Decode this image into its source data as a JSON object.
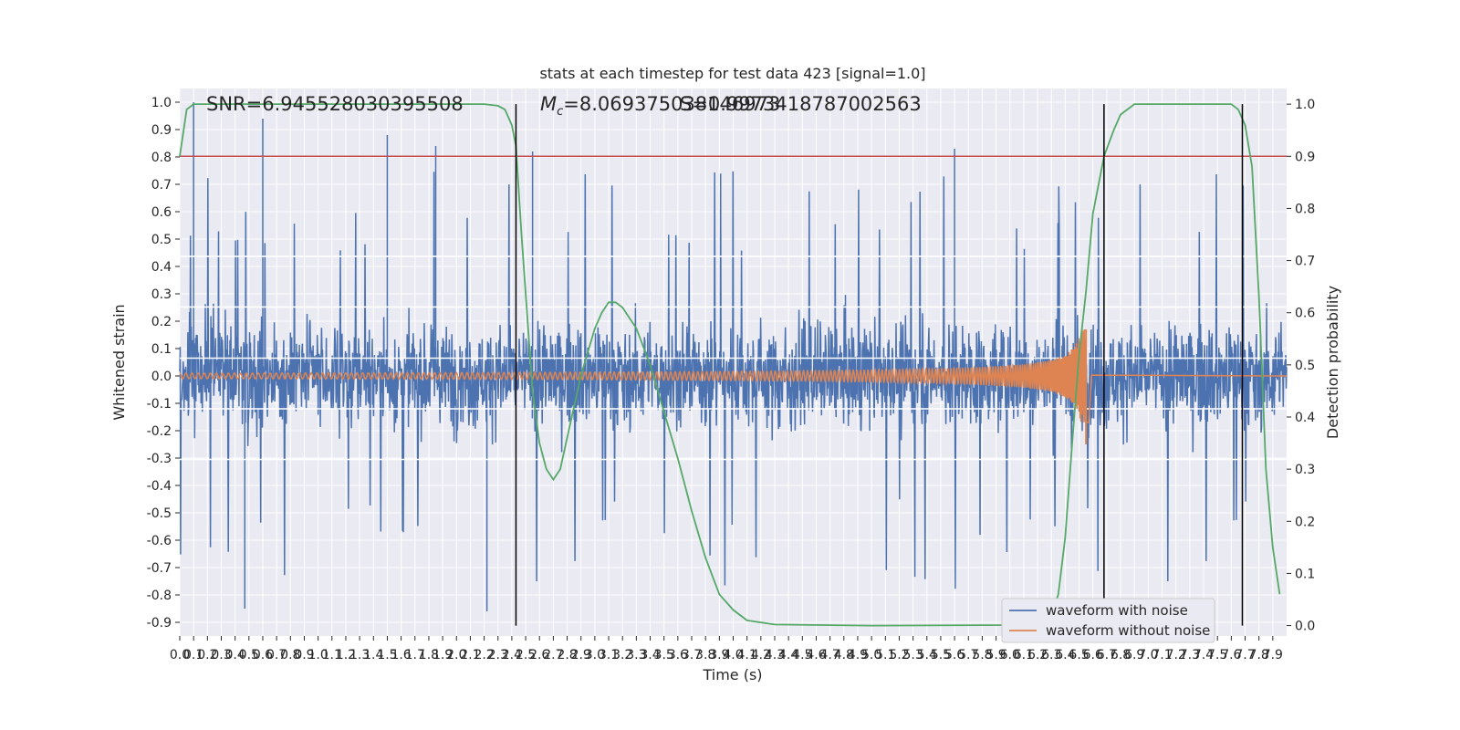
{
  "chart_data": {
    "type": "line",
    "title": "stats at each timestep for test data 423 [signal=1.0]",
    "xlabel": "Time (s)",
    "ylabel": "Whitened strain",
    "y2label": "Detection probability",
    "xlim": [
      0,
      8
    ],
    "ylim": [
      -0.95,
      1.05
    ],
    "y2lim": [
      -0.02,
      1.03
    ],
    "xticks": [
      "0.0",
      "0.1",
      "0.2",
      "0.3",
      "0.4",
      "0.5",
      "0.6",
      "0.7",
      "0.8",
      "0.9",
      "1.0",
      "1.1",
      "1.2",
      "1.3",
      "1.4",
      "1.5",
      "1.6",
      "1.7",
      "1.8",
      "1.9",
      "2.0",
      "2.1",
      "2.2",
      "2.3",
      "2.4",
      "2.5",
      "2.6",
      "2.7",
      "2.8",
      "2.9",
      "3.0",
      "3.1",
      "3.2",
      "3.3",
      "3.4",
      "3.5",
      "3.6",
      "3.7",
      "3.8",
      "3.9",
      "4.0",
      "4.1",
      "4.2",
      "4.3",
      "4.4",
      "4.5",
      "4.6",
      "4.7",
      "4.8",
      "4.9",
      "5.0",
      "5.1",
      "5.2",
      "5.3",
      "5.4",
      "5.5",
      "5.6",
      "5.7",
      "5.8",
      "5.9",
      "6.0",
      "6.1",
      "6.2",
      "6.3",
      "6.4",
      "6.5",
      "6.6",
      "6.7",
      "6.8",
      "6.9",
      "7.0",
      "7.1",
      "7.2",
      "7.3",
      "7.4",
      "7.5",
      "7.6",
      "7.7",
      "7.8",
      "7.9"
    ],
    "yticks": [
      "1.0",
      "0.9",
      "0.8",
      "0.7",
      "0.6",
      "0.5",
      "0.4",
      "0.3",
      "0.2",
      "0.1",
      "0.0",
      "-0.1",
      "-0.2",
      "-0.3",
      "-0.4",
      "-0.5",
      "-0.6",
      "-0.7",
      "-0.8",
      "-0.9"
    ],
    "y2ticks": [
      "1.0",
      "0.9",
      "0.8",
      "0.7",
      "0.6",
      "0.5",
      "0.4",
      "0.3",
      "0.2",
      "0.1",
      "0.0"
    ],
    "annotations": {
      "snr": "SNR=6.945528030395508",
      "mc": "=8.069375038146973",
      "mc_symbol": "M",
      "mc_sub": "c",
      "overlap": "S=0.9973418787002563"
    },
    "threshold": {
      "axis": "y2",
      "value": 0.9,
      "color": "#c44e52"
    },
    "vlines_x": [
      2.43,
      6.68,
      7.68
    ],
    "series": [
      {
        "name": "waveform with noise",
        "color": "#4c72b0",
        "kind": "noise",
        "amplitude_envelope": [
          -0.6,
          0.6
        ],
        "peak_max": 1.0,
        "peak_min": -0.86
      },
      {
        "name": "waveform without noise",
        "color": "#dd8452",
        "kind": "chirp",
        "merger_time": 6.55,
        "peak_amplitude": 0.17,
        "base_amplitude": 0.01
      },
      {
        "name": "detection probability",
        "color": "#55a868",
        "axis": "y2",
        "kind": "probability",
        "x": [
          0.0,
          0.05,
          0.1,
          0.2,
          0.5,
          1.0,
          1.5,
          2.0,
          2.2,
          2.3,
          2.35,
          2.4,
          2.43,
          2.47,
          2.55,
          2.6,
          2.65,
          2.7,
          2.75,
          2.8,
          2.9,
          3.0,
          3.05,
          3.1,
          3.15,
          3.2,
          3.3,
          3.4,
          3.5,
          3.6,
          3.7,
          3.8,
          3.9,
          4.0,
          4.1,
          4.3,
          5.0,
          6.0,
          6.2,
          6.3,
          6.35,
          6.4,
          6.45,
          6.5,
          6.55,
          6.6,
          6.68,
          6.75,
          6.8,
          6.9,
          7.0,
          7.2,
          7.5,
          7.6,
          7.65,
          7.7,
          7.75,
          7.8,
          7.85,
          7.9,
          7.95
        ],
        "y": [
          0.9,
          0.99,
          1.0,
          1.0,
          1.0,
          1.0,
          1.0,
          1.0,
          1.0,
          0.997,
          0.99,
          0.96,
          0.92,
          0.75,
          0.45,
          0.35,
          0.3,
          0.28,
          0.3,
          0.36,
          0.48,
          0.57,
          0.6,
          0.62,
          0.62,
          0.61,
          0.57,
          0.5,
          0.41,
          0.32,
          0.22,
          0.13,
          0.06,
          0.03,
          0.01,
          0.002,
          0.0,
          0.001,
          0.005,
          0.02,
          0.06,
          0.17,
          0.35,
          0.52,
          0.64,
          0.79,
          0.9,
          0.95,
          0.98,
          1.0,
          1.0,
          1.0,
          1.0,
          1.0,
          0.99,
          0.96,
          0.88,
          0.63,
          0.3,
          0.15,
          0.06
        ]
      }
    ],
    "legend": {
      "location": "lower-right",
      "entries": [
        "waveform with noise",
        "waveform without noise"
      ]
    },
    "grid": true
  }
}
